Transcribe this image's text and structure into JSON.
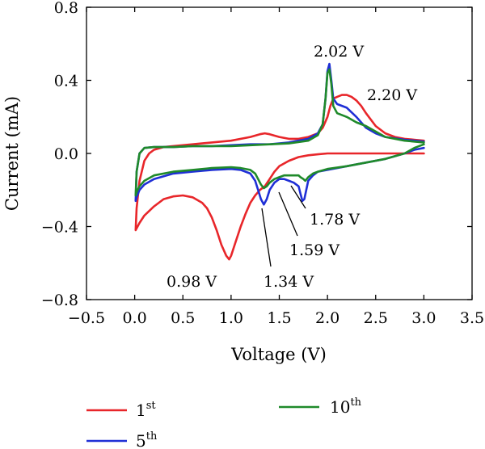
{
  "chart_data": {
    "type": "line",
    "xlabel": "Voltage (V)",
    "ylabel": "Current (mA)",
    "xlim": [
      -0.5,
      3.5
    ],
    "ylim": [
      -0.8,
      0.8
    ],
    "xticks": [
      -0.5,
      0.0,
      0.5,
      1.0,
      1.5,
      2.0,
      2.5,
      3.0,
      3.5
    ],
    "yticks": [
      -0.8,
      -0.4,
      0.0,
      0.4,
      0.8
    ],
    "xtick_labels": [
      "−0.5",
      "0.0",
      "0.5",
      "1.0",
      "1.5",
      "2.0",
      "2.5",
      "3.0",
      "3.5"
    ],
    "ytick_labels": [
      "−0.8",
      "−0.4",
      "0.0",
      "0.4",
      "0.8"
    ],
    "grid": false,
    "legend_placement": "bottom",
    "colors": {
      "first": "#e8262a",
      "fifth": "#1f2fd6",
      "tenth": "#1f8a2a"
    },
    "series": [
      {
        "name": "1st",
        "legend_base": "1",
        "legend_sup": "st",
        "color": "#e8262a",
        "x": [
          3.0,
          2.8,
          2.6,
          2.4,
          2.2,
          2.0,
          1.9,
          1.8,
          1.7,
          1.6,
          1.5,
          1.45,
          1.4,
          1.35,
          1.3,
          1.25,
          1.2,
          1.15,
          1.1,
          1.05,
          1.0,
          0.98,
          0.95,
          0.9,
          0.85,
          0.8,
          0.75,
          0.7,
          0.6,
          0.5,
          0.4,
          0.3,
          0.2,
          0.1,
          0.05,
          0.02,
          0.01,
          0.02,
          0.05,
          0.1,
          0.15,
          0.2,
          0.3,
          0.4,
          0.6,
          0.8,
          1.0,
          1.2,
          1.3,
          1.35,
          1.4,
          1.5,
          1.6,
          1.7,
          1.8,
          1.9,
          1.95,
          2.0,
          2.03,
          2.06,
          2.1,
          2.15,
          2.2,
          2.25,
          2.3,
          2.35,
          2.4,
          2.5,
          2.6,
          2.7,
          2.8,
          2.9,
          3.0
        ],
        "y": [
          0.0,
          0.0,
          0.0,
          0.0,
          0.0,
          0.0,
          -0.005,
          -0.01,
          -0.02,
          -0.04,
          -0.07,
          -0.1,
          -0.14,
          -0.18,
          -0.2,
          -0.23,
          -0.27,
          -0.33,
          -0.4,
          -0.48,
          -0.56,
          -0.58,
          -0.56,
          -0.5,
          -0.42,
          -0.35,
          -0.3,
          -0.27,
          -0.24,
          -0.23,
          -0.235,
          -0.25,
          -0.29,
          -0.34,
          -0.38,
          -0.41,
          -0.42,
          -0.3,
          -0.15,
          -0.04,
          0.0,
          0.02,
          0.035,
          0.04,
          0.05,
          0.06,
          0.07,
          0.09,
          0.105,
          0.11,
          0.105,
          0.09,
          0.08,
          0.08,
          0.09,
          0.11,
          0.14,
          0.2,
          0.26,
          0.3,
          0.31,
          0.32,
          0.32,
          0.31,
          0.29,
          0.26,
          0.22,
          0.15,
          0.11,
          0.09,
          0.08,
          0.075,
          0.07
        ]
      },
      {
        "name": "5th",
        "legend_base": "5",
        "legend_sup": "th",
        "color": "#1f2fd6",
        "x": [
          3.0,
          2.9,
          2.8,
          2.6,
          2.4,
          2.2,
          2.1,
          2.0,
          1.9,
          1.85,
          1.8,
          1.78,
          1.76,
          1.74,
          1.72,
          1.7,
          1.65,
          1.6,
          1.55,
          1.5,
          1.45,
          1.4,
          1.37,
          1.34,
          1.31,
          1.28,
          1.25,
          1.2,
          1.1,
          1.0,
          0.8,
          0.6,
          0.4,
          0.2,
          0.1,
          0.05,
          0.02,
          0.01,
          0.02,
          0.05,
          0.1,
          0.2,
          0.4,
          0.6,
          0.8,
          1.0,
          1.2,
          1.4,
          1.6,
          1.8,
          1.9,
          1.95,
          1.98,
          2.0,
          2.02,
          2.04,
          2.06,
          2.1,
          2.2,
          2.3,
          2.4,
          2.5,
          2.6,
          2.8,
          3.0
        ],
        "y": [
          0.03,
          0.02,
          0.0,
          -0.03,
          -0.05,
          -0.07,
          -0.08,
          -0.09,
          -0.1,
          -0.12,
          -0.15,
          -0.2,
          -0.25,
          -0.26,
          -0.22,
          -0.18,
          -0.16,
          -0.15,
          -0.14,
          -0.14,
          -0.16,
          -0.2,
          -0.25,
          -0.28,
          -0.25,
          -0.2,
          -0.15,
          -0.11,
          -0.09,
          -0.085,
          -0.09,
          -0.1,
          -0.11,
          -0.14,
          -0.17,
          -0.2,
          -0.24,
          -0.26,
          -0.1,
          0.0,
          0.03,
          0.035,
          0.035,
          0.04,
          0.04,
          0.045,
          0.05,
          0.05,
          0.06,
          0.08,
          0.11,
          0.16,
          0.3,
          0.45,
          0.49,
          0.4,
          0.3,
          0.27,
          0.25,
          0.2,
          0.14,
          0.11,
          0.09,
          0.075,
          0.065
        ]
      },
      {
        "name": "10th",
        "legend_base": "10",
        "legend_sup": "th",
        "color": "#1f8a2a",
        "x": [
          3.0,
          2.9,
          2.8,
          2.6,
          2.4,
          2.2,
          2.0,
          1.9,
          1.85,
          1.8,
          1.77,
          1.75,
          1.72,
          1.7,
          1.65,
          1.6,
          1.55,
          1.5,
          1.45,
          1.4,
          1.37,
          1.34,
          1.31,
          1.28,
          1.25,
          1.2,
          1.1,
          1.0,
          0.8,
          0.6,
          0.4,
          0.2,
          0.1,
          0.05,
          0.02,
          0.01,
          0.02,
          0.05,
          0.1,
          0.2,
          0.4,
          0.6,
          0.8,
          1.0,
          1.2,
          1.4,
          1.6,
          1.8,
          1.9,
          1.95,
          1.98,
          2.0,
          2.02,
          2.04,
          2.06,
          2.1,
          2.2,
          2.3,
          2.4,
          2.5,
          2.6,
          2.8,
          3.0
        ],
        "y": [
          0.05,
          0.03,
          0.0,
          -0.03,
          -0.05,
          -0.07,
          -0.085,
          -0.1,
          -0.11,
          -0.13,
          -0.15,
          -0.14,
          -0.13,
          -0.12,
          -0.12,
          -0.12,
          -0.12,
          -0.13,
          -0.14,
          -0.16,
          -0.18,
          -0.19,
          -0.17,
          -0.14,
          -0.11,
          -0.09,
          -0.08,
          -0.075,
          -0.08,
          -0.09,
          -0.1,
          -0.12,
          -0.15,
          -0.18,
          -0.21,
          -0.23,
          -0.1,
          0.0,
          0.03,
          0.035,
          0.035,
          0.04,
          0.04,
          0.04,
          0.045,
          0.05,
          0.055,
          0.07,
          0.1,
          0.16,
          0.3,
          0.44,
          0.46,
          0.38,
          0.26,
          0.22,
          0.2,
          0.17,
          0.15,
          0.12,
          0.09,
          0.07,
          0.06
        ]
      }
    ],
    "annotations": [
      {
        "text": "2.02 V",
        "x": 2.02,
        "y": 0.49
      },
      {
        "text": "2.20 V",
        "x": 2.2,
        "y": 0.32
      },
      {
        "text": "0.98 V",
        "x": 0.98,
        "y": -0.58
      },
      {
        "text": "1.34 V",
        "x": 1.34,
        "y": -0.28
      },
      {
        "text": "1.59 V",
        "x": 1.59,
        "y": -0.14
      },
      {
        "text": "1.78 V",
        "x": 1.78,
        "y": -0.26
      }
    ]
  }
}
